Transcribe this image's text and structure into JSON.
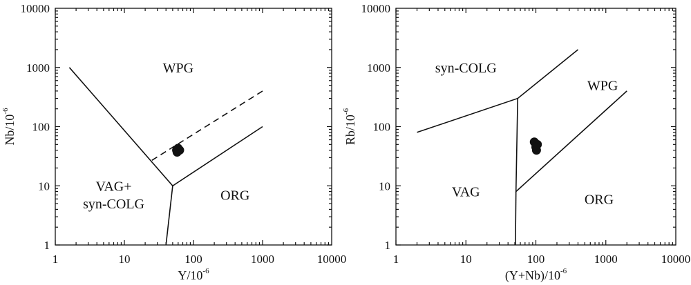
{
  "chart_data": [
    {
      "type": "scatter",
      "scale": "log-log",
      "xlabel": "Y/10",
      "xlabel_exp": "-6",
      "ylabel": "Nb/10",
      "ylabel_exp": "-6",
      "xlim": [
        1,
        10000
      ],
      "ylim": [
        1,
        10000
      ],
      "xticks": [
        "1",
        "10",
        "100",
        "1000",
        "10000"
      ],
      "yticks": [
        "1",
        "10",
        "100",
        "1000",
        "10000"
      ],
      "boundaries": [
        {
          "style": "solid",
          "points": [
            [
              1.6,
              1000
            ],
            [
              50,
              10
            ],
            [
              1000,
              100
            ]
          ]
        },
        {
          "style": "solid",
          "points": [
            [
              50,
              10
            ],
            [
              40,
              1
            ]
          ]
        },
        {
          "style": "dashed",
          "points": [
            [
              25,
              27
            ],
            [
              1000,
              400
            ]
          ]
        }
      ],
      "regions": [
        {
          "label": "WPG",
          "x": 60,
          "y": 1000
        },
        {
          "label": "VAG+",
          "x": 7,
          "y": 10
        },
        {
          "label": "syn-COLG",
          "x": 7,
          "y": 5
        },
        {
          "label": "ORG",
          "x": 400,
          "y": 7
        }
      ],
      "points": [
        {
          "x": 57,
          "y": 40
        },
        {
          "x": 63,
          "y": 40
        },
        {
          "x": 58,
          "y": 37
        },
        {
          "x": 60,
          "y": 43
        }
      ]
    },
    {
      "type": "scatter",
      "scale": "log-log",
      "xlabel": "(Y+Nb)/10",
      "xlabel_exp": "-6",
      "ylabel": "Rb/10",
      "ylabel_exp": "-6",
      "xlim": [
        1,
        10000
      ],
      "ylim": [
        1,
        10000
      ],
      "xticks": [
        "1",
        "10",
        "100",
        "1000",
        "10000"
      ],
      "yticks": [
        "1",
        "10",
        "100",
        "1000",
        "10000"
      ],
      "boundaries": [
        {
          "style": "solid",
          "points": [
            [
              2,
              80
            ],
            [
              55,
              300
            ],
            [
              400,
              2000
            ]
          ]
        },
        {
          "style": "solid",
          "points": [
            [
              55,
              300
            ],
            [
              52,
              8
            ],
            [
              2000,
              400
            ]
          ]
        },
        {
          "style": "solid",
          "points": [
            [
              52,
              8
            ],
            [
              51,
              1
            ]
          ]
        }
      ],
      "regions": [
        {
          "label": "syn-COLG",
          "x": 10,
          "y": 1000
        },
        {
          "label": "WPG",
          "x": 900,
          "y": 500
        },
        {
          "label": "VAG",
          "x": 10,
          "y": 8
        },
        {
          "label": "ORG",
          "x": 800,
          "y": 6
        }
      ],
      "points": [
        {
          "x": 95,
          "y": 55
        },
        {
          "x": 105,
          "y": 50
        },
        {
          "x": 100,
          "y": 45
        },
        {
          "x": 102,
          "y": 40
        }
      ]
    }
  ]
}
